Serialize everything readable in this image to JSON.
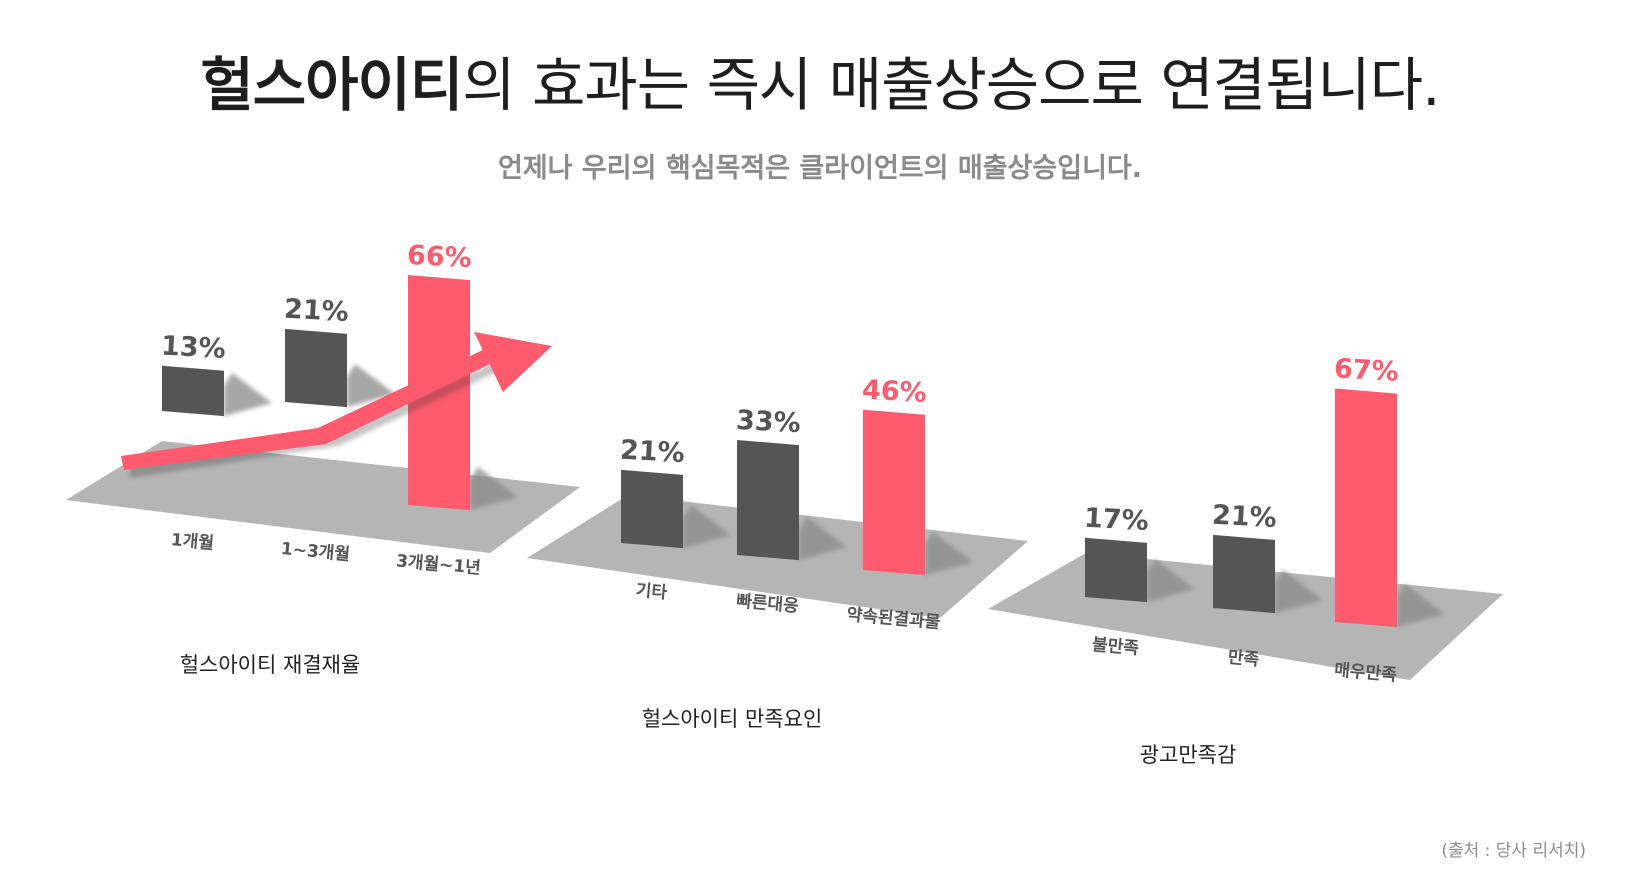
{
  "header": {
    "title_bold": "헐스아이티",
    "title_rest": "의 효과는 즉시 매출상승으로 연결됩니다.",
    "subtitle": "언제나 우리의 핵심목적은 클라이언트의 매출상승입니다."
  },
  "colors": {
    "accent": "#ff5a6e",
    "dark_bar": "#555555",
    "floor": "#b5b5b5",
    "shadow": "#8a8a8a"
  },
  "chart_data": [
    {
      "type": "bar",
      "title": "헐스아이티 재결재율",
      "categories": [
        "1개월",
        "1~3개월",
        "3개월~1년"
      ],
      "values": [
        13,
        21,
        66
      ],
      "value_labels": [
        "13%",
        "21%",
        "66%"
      ],
      "highlight_index": 2,
      "ylim": [
        0,
        70
      ],
      "trend_arrow": true
    },
    {
      "type": "bar",
      "title": "헐스아이티 만족요인",
      "categories": [
        "기타",
        "빠른대응",
        "약속된결과물"
      ],
      "values": [
        21,
        33,
        46
      ],
      "value_labels": [
        "21%",
        "33%",
        "46%"
      ],
      "highlight_index": 2,
      "ylim": [
        0,
        70
      ]
    },
    {
      "type": "bar",
      "title": "광고만족감",
      "categories": [
        "불만족",
        "만족",
        "매우만족"
      ],
      "values": [
        17,
        21,
        67
      ],
      "value_labels": [
        "17%",
        "21%",
        "67%"
      ],
      "highlight_index": 2,
      "ylim": [
        0,
        70
      ]
    }
  ],
  "footer": {
    "source": "(출처 : 당사 리서치)"
  }
}
